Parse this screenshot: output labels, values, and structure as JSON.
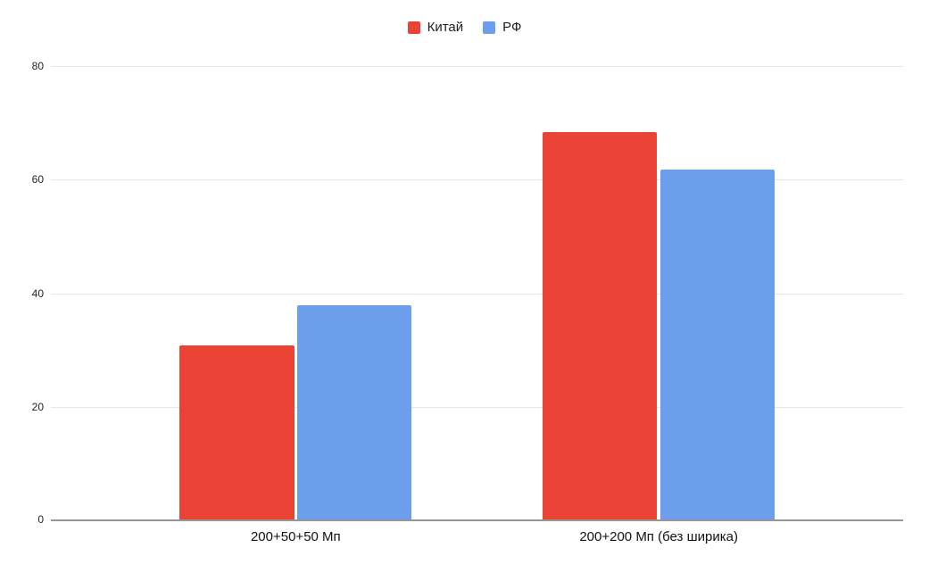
{
  "chart_data": {
    "type": "bar",
    "title": "",
    "categories": [
      "200+50+50 Мп",
      "200+200 Мп (без ширика)"
    ],
    "series": [
      {
        "name": "Китай",
        "color": "#EA4335",
        "values": [
          31,
          68.5
        ]
      },
      {
        "name": "РФ",
        "color": "#6D9EEB",
        "values": [
          38,
          62
        ]
      }
    ],
    "yticks": [
      0,
      20,
      40,
      60,
      80
    ],
    "ylim": [
      0,
      80
    ],
    "xlabel": "",
    "ylabel": "",
    "grid": true,
    "legend_position": "top",
    "colors": {
      "gridline": "#e6e6e6",
      "axis_line": "#969696",
      "tick_text": "#222222",
      "label_text": "#111111",
      "background": "#ffffff"
    }
  }
}
